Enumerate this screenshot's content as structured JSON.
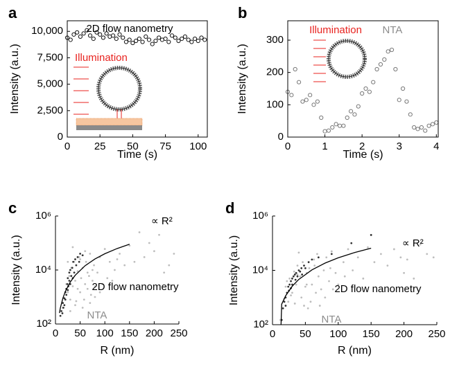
{
  "chart_data": [
    {
      "type": "scatter",
      "panel_label": "a",
      "xlabel": "Time (s)",
      "ylabel": "Intensity (a.u.)",
      "xlim": [
        0,
        107
      ],
      "ylim": [
        0,
        11000
      ],
      "xticks": [
        0,
        25,
        50,
        75,
        100
      ],
      "yticks": [
        0,
        {
          "value": 2500,
          "label": "2,500"
        },
        {
          "value": 5000,
          "label": "5,000"
        },
        {
          "value": 7500,
          "label": "7,500"
        },
        {
          "value": 10000,
          "label": "10,000"
        }
      ],
      "annotations": [
        {
          "text": "2D flow nanometry",
          "color": "#000000"
        },
        {
          "text": "Illumination",
          "color": "#e8231f"
        }
      ],
      "series": [
        {
          "color": "#111111",
          "marker": "circle",
          "x": [
            0,
            2.5,
            5,
            7.5,
            10,
            12.5,
            15,
            17.5,
            20,
            22.5,
            25,
            27.5,
            30,
            32.5,
            35,
            37.5,
            40,
            42.5,
            45,
            47.5,
            50,
            52.5,
            55,
            57.5,
            60,
            62.5,
            65,
            67.5,
            70,
            72.5,
            75,
            77.5,
            80,
            82.5,
            85,
            87.5,
            90,
            92.5,
            95,
            97.5,
            100,
            102.5,
            105
          ],
          "values": [
            9400,
            9200,
            9700,
            9900,
            9500,
            9800,
            10100,
            9600,
            9300,
            9900,
            9700,
            9400,
            9800,
            9500,
            9600,
            9300,
            9700,
            9400,
            9000,
            9200,
            8900,
            9100,
            9300,
            9000,
            9500,
            9200,
            8800,
            9100,
            9400,
            9200,
            9300,
            9000,
            9600,
            9400,
            9100,
            9300,
            9500,
            9200,
            9000,
            9300,
            9100,
            9400,
            9200
          ]
        }
      ]
    },
    {
      "type": "scatter",
      "panel_label": "b",
      "xlabel": "Time (s)",
      "ylabel": "Intensity (a.u.)",
      "xlim": [
        0,
        4.05
      ],
      "ylim": [
        0,
        360
      ],
      "xticks": [
        0,
        1,
        2,
        3,
        4
      ],
      "yticks": [
        0,
        100,
        200,
        300
      ],
      "annotations": [
        {
          "text": "Illumination",
          "color": "#e8231f"
        },
        {
          "text": "NTA",
          "color": "#8c8c8c"
        }
      ],
      "series": [
        {
          "color": "#777777",
          "marker": "circle",
          "x": [
            0,
            0.1,
            0.2,
            0.3,
            0.4,
            0.5,
            0.6,
            0.7,
            0.8,
            0.9,
            1,
            1.1,
            1.2,
            1.3,
            1.4,
            1.5,
            1.6,
            1.7,
            1.8,
            1.9,
            2,
            2.1,
            2.2,
            2.3,
            2.4,
            2.5,
            2.6,
            2.7,
            2.8,
            2.9,
            3,
            3.1,
            3.2,
            3.3,
            3.4,
            3.5,
            3.6,
            3.7,
            3.8,
            3.9,
            4
          ],
          "values": [
            140,
            130,
            210,
            170,
            110,
            115,
            130,
            100,
            110,
            60,
            18,
            20,
            30,
            40,
            35,
            35,
            60,
            80,
            70,
            95,
            135,
            150,
            140,
            170,
            210,
            225,
            240,
            265,
            270,
            210,
            115,
            150,
            110,
            70,
            30,
            25,
            30,
            20,
            35,
            40,
            45
          ]
        }
      ]
    },
    {
      "type": "scatter",
      "panel_label": "c",
      "xlabel": "R (nm)",
      "ylabel": "Intensity (a.u.)",
      "yscale": "log",
      "xlim": [
        0,
        250
      ],
      "ylim": [
        100,
        1000000
      ],
      "xticks": [
        0,
        50,
        100,
        150,
        200,
        250
      ],
      "yticks": [
        {
          "value": 100,
          "label": "10²"
        },
        {
          "value": 10000,
          "label": "10⁴"
        },
        {
          "value": 1000000,
          "label": "10⁶"
        }
      ],
      "annotations": [
        {
          "text": "∝ R²",
          "color": "#000000"
        },
        {
          "text": "2D flow nanometry",
          "color": "#000000"
        },
        {
          "text": "NTA",
          "color": "#8c8c8c"
        }
      ],
      "series": [
        {
          "color": "#bdbdbd",
          "marker": "dot",
          "x": [
            15,
            20,
            22,
            25,
            28,
            30,
            32,
            35,
            38,
            40,
            42,
            45,
            48,
            50,
            52,
            55,
            58,
            60,
            62,
            65,
            68,
            70,
            72,
            75,
            78,
            80,
            85,
            90,
            95,
            100,
            105,
            110,
            120,
            130,
            140,
            150,
            160,
            170,
            180,
            200,
            210,
            220,
            240,
            30,
            40,
            50,
            60,
            70,
            80,
            90,
            35,
            45,
            55,
            65,
            25,
            75,
            115,
            125,
            230,
            190
          ],
          "values": [
            400,
            800,
            3000,
            1500,
            6000,
            800,
            12000,
            2500,
            20000,
            4000,
            700,
            9000,
            30000,
            1500,
            5000,
            12000,
            800,
            3000,
            20000,
            2000,
            6000,
            40000,
            1200,
            4000,
            15000,
            2500,
            8000,
            30000,
            3000,
            60000,
            5000,
            20000,
            10000,
            40000,
            15000,
            80000,
            20000,
            250000,
            30000,
            50000,
            200000,
            8000,
            40000,
            300,
            500,
            25000,
            50000,
            600,
            1000,
            1500,
            70000,
            2000,
            400,
            8000,
            20000,
            10000,
            4000,
            25000,
            15000,
            100000
          ]
        },
        {
          "color": "#333333",
          "marker": "dot",
          "x": [
            10,
            12,
            14,
            15,
            16,
            18,
            18,
            20,
            20,
            22,
            22,
            24,
            25,
            25,
            26,
            28,
            28,
            30,
            30,
            32,
            34,
            35,
            36,
            38,
            40,
            42,
            45,
            48,
            50,
            55
          ],
          "values": [
            200,
            300,
            250,
            600,
            400,
            900,
            500,
            1500,
            800,
            2000,
            1200,
            3000,
            1800,
            5000,
            2500,
            4000,
            8000,
            3000,
            10000,
            6000,
            12000,
            5000,
            20000,
            8000,
            25000,
            15000,
            30000,
            20000,
            40000,
            35000
          ]
        },
        {
          "color": "#000000",
          "marker": "line",
          "x": [
            8,
            10,
            15,
            20,
            30,
            40,
            60,
            80,
            100,
            125,
            150
          ],
          "values": [
            256,
            400,
            900,
            1600,
            3600,
            6400,
            14400,
            25600,
            40000,
            62500,
            90000
          ]
        }
      ]
    },
    {
      "type": "scatter",
      "panel_label": "d",
      "xlabel": "R (nm)",
      "ylabel": "Intensity (a.u.)",
      "yscale": "log",
      "xlim": [
        0,
        250
      ],
      "ylim": [
        100,
        1000000
      ],
      "xticks": [
        0,
        50,
        100,
        150,
        200,
        250
      ],
      "yticks": [
        {
          "value": 100,
          "label": "10²"
        },
        {
          "value": 10000,
          "label": "10⁴"
        },
        {
          "value": 1000000,
          "label": "10⁶"
        }
      ],
      "annotations": [
        {
          "text": "∝ R²",
          "color": "#000000"
        },
        {
          "text": "2D flow nanometry",
          "color": "#000000"
        },
        {
          "text": "NTA",
          "color": "#8c8c8c"
        }
      ],
      "series": [
        {
          "color": "#bdbdbd",
          "marker": "dot",
          "x": [
            12,
            18,
            20,
            24,
            26,
            30,
            33,
            36,
            38,
            42,
            44,
            46,
            50,
            52,
            54,
            56,
            60,
            63,
            66,
            70,
            74,
            78,
            82,
            86,
            90,
            96,
            100,
            108,
            115,
            122,
            130,
            138,
            145,
            155,
            165,
            175,
            185,
            195,
            205,
            215,
            225,
            235,
            28,
            34,
            40,
            48,
            58,
            68,
            80,
            92,
            22,
            38,
            52,
            64,
            72,
            88,
            110,
            150,
            200,
            245
          ],
          "values": [
            150,
            900,
            2500,
            700,
            5000,
            1500,
            9000,
            3000,
            15000,
            6000,
            1000,
            20000,
            2500,
            8000,
            400,
            12000,
            3000,
            25000,
            1500,
            6000,
            2000,
            10000,
            30000,
            4000,
            50000,
            8000,
            3000,
            20000,
            60000,
            10000,
            30000,
            5000,
            70000,
            20000,
            40000,
            15000,
            60000,
            30000,
            25000,
            5000,
            90000,
            40000,
            1200,
            600,
            45000,
            500,
            700,
            40000,
            1000,
            2000,
            4000,
            7000,
            3000,
            15000,
            500,
            12000,
            6000,
            200000,
            8000,
            30000
          ]
        },
        {
          "color": "#333333",
          "marker": "dot",
          "x": [
            14,
            16,
            18,
            20,
            20,
            22,
            24,
            25,
            26,
            28,
            28,
            30,
            30,
            32,
            34,
            35,
            36,
            38,
            40,
            42,
            44,
            45,
            48,
            50,
            55,
            60,
            70,
            90,
            120,
            150
          ],
          "values": [
            150,
            400,
            700,
            1000,
            500,
            1500,
            2500,
            1800,
            3000,
            4000,
            2200,
            5000,
            3000,
            6000,
            7000,
            4500,
            8000,
            6000,
            10000,
            9000,
            12000,
            7000,
            15000,
            12000,
            20000,
            25000,
            30000,
            40000,
            100000,
            200000
          ]
        },
        {
          "color": "#000000",
          "marker": "line",
          "x": [
            13,
            14,
            20,
            30,
            40,
            60,
            80,
            100,
            125,
            150
          ],
          "values": [
            100,
            570,
            1160,
            2600,
            4640,
            10400,
            18500,
            29000,
            45300,
            65250
          ]
        }
      ]
    }
  ]
}
